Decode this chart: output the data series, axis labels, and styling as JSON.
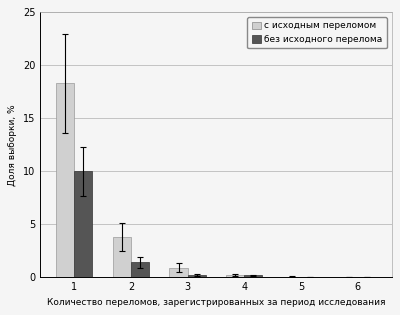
{
  "categories": [
    1,
    2,
    3,
    4,
    5,
    6
  ],
  "series1_values": [
    18.3,
    3.8,
    0.9,
    0.2,
    0.05,
    0.02
  ],
  "series1_errors": [
    4.7,
    1.3,
    0.4,
    0.1,
    0.03,
    0.01
  ],
  "series2_values": [
    10.0,
    1.4,
    0.25,
    0.2,
    0.05,
    0.02
  ],
  "series2_errors": [
    2.3,
    0.5,
    0.1,
    0.05,
    0.02,
    0.01
  ],
  "series1_color": "#d0d0d0",
  "series2_color": "#555555",
  "series1_label": "с исходным переломом",
  "series2_label": "без исходного перелома",
  "ylabel": "Доля выборки, %",
  "xlabel": "Количество переломов, зарегистрированных за период исследования",
  "ylim": [
    0,
    25
  ],
  "yticks": [
    0,
    5,
    10,
    15,
    20,
    25
  ],
  "background_color": "#f5f5f5",
  "bar_width": 0.32,
  "axis_fontsize": 6.5,
  "tick_fontsize": 7,
  "legend_fontsize": 6.5
}
